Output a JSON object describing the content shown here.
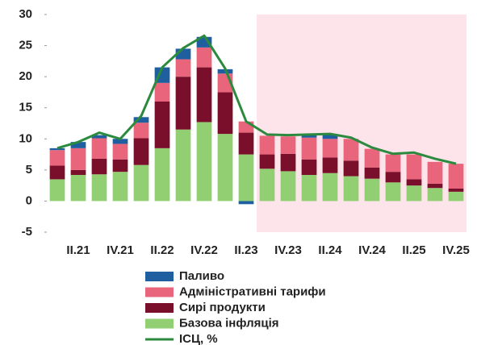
{
  "chart_data": {
    "type": "bar",
    "stacked": true,
    "categories": [
      null,
      "II.21",
      null,
      "IV.21",
      null,
      "II.22",
      null,
      "IV.22",
      null,
      "II.23",
      null,
      "IV.23",
      null,
      "II.24",
      null,
      "IV.24",
      null,
      "II.25",
      null,
      "IV.25"
    ],
    "series": [
      {
        "name": "Паливо",
        "color": "#1f5f9f",
        "values": [
          0.3,
          1.0,
          0.5,
          0.8,
          0.9,
          2.5,
          1.7,
          1.7,
          0.7,
          -0.5,
          0,
          0,
          0.5,
          0.8,
          0,
          0,
          0,
          0,
          0,
          0
        ]
      },
      {
        "name": "Адміністративні тарифи",
        "color": "#e8657b",
        "values": [
          2.5,
          3.5,
          3.3,
          2.5,
          2.5,
          3.0,
          2.8,
          3.2,
          3.0,
          1.8,
          3.0,
          2.8,
          3.5,
          3.0,
          3.5,
          3.0,
          2.8,
          4.0,
          3.5,
          4.0
        ]
      },
      {
        "name": "Сирі продукти",
        "color": "#7a0f2b",
        "values": [
          2.2,
          0.8,
          2.5,
          2.0,
          4.3,
          7.5,
          8.5,
          8.8,
          6.7,
          3.5,
          2.3,
          2.8,
          2.5,
          2.5,
          2.5,
          1.8,
          1.7,
          1.0,
          0.7,
          0.5
        ]
      },
      {
        "name": "Базова інфляція",
        "color": "#92cf72",
        "values": [
          3.5,
          4.2,
          4.3,
          4.7,
          5.8,
          8.5,
          11.5,
          12.7,
          10.8,
          7.5,
          5.2,
          4.8,
          4.2,
          4.5,
          4.0,
          3.6,
          3.0,
          2.5,
          2.1,
          1.5
        ]
      },
      {
        "name": "ІСЦ, %",
        "type": "line",
        "color": "#2b8a3e",
        "values": [
          8.5,
          9.5,
          11.0,
          10.0,
          13.7,
          21.5,
          24.6,
          26.6,
          21.3,
          12.8,
          10.7,
          10.6,
          10.7,
          10.8,
          10.2,
          8.6,
          7.6,
          7.8,
          6.8,
          6.0
        ]
      }
    ],
    "ylim": [
      -5,
      30
    ],
    "yticks": [
      -5,
      0,
      5,
      10,
      15,
      20,
      25,
      30
    ],
    "grid": false,
    "shade_from_index": 10,
    "shade_color": "#fde3ea"
  }
}
